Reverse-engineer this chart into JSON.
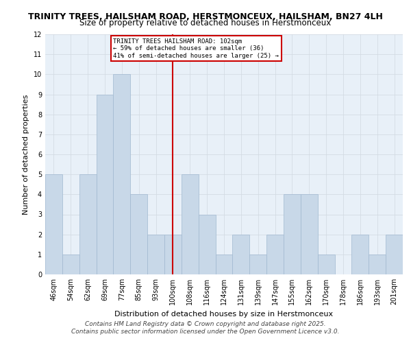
{
  "title_line1": "TRINITY TREES, HAILSHAM ROAD, HERSTMONCEUX, HAILSHAM, BN27 4LH",
  "title_line2": "Size of property relative to detached houses in Herstmonceux",
  "categories": [
    "46sqm",
    "54sqm",
    "62sqm",
    "69sqm",
    "77sqm",
    "85sqm",
    "93sqm",
    "100sqm",
    "108sqm",
    "116sqm",
    "124sqm",
    "131sqm",
    "139sqm",
    "147sqm",
    "155sqm",
    "162sqm",
    "170sqm",
    "178sqm",
    "186sqm",
    "193sqm",
    "201sqm"
  ],
  "values": [
    5,
    1,
    5,
    9,
    10,
    4,
    2,
    2,
    5,
    3,
    1,
    2,
    1,
    2,
    4,
    4,
    1,
    0,
    2,
    1,
    2
  ],
  "bar_color": "#c8d8e8",
  "bar_edge_color": "#a0b8d0",
  "highlight_index": 7,
  "highlight_line_color": "#cc0000",
  "annotation_line1": "TRINITY TREES HAILSHAM ROAD: 102sqm",
  "annotation_line2": "← 59% of detached houses are smaller (36)",
  "annotation_line3": "41% of semi-detached houses are larger (25) →",
  "annotation_box_color": "#ffffff",
  "annotation_box_edge": "#cc0000",
  "ylabel": "Number of detached properties",
  "xlabel": "Distribution of detached houses by size in Herstmonceux",
  "ylim": [
    0,
    12
  ],
  "yticks": [
    0,
    1,
    2,
    3,
    4,
    5,
    6,
    7,
    8,
    9,
    10,
    11,
    12
  ],
  "grid_color": "#d0d8e0",
  "background_color": "#e8f0f8",
  "footer_line1": "Contains HM Land Registry data © Crown copyright and database right 2025.",
  "footer_line2": "Contains public sector information licensed under the Open Government Licence v3.0.",
  "title_fontsize": 9,
  "subtitle_fontsize": 8.5,
  "tick_fontsize": 7,
  "ylabel_fontsize": 8,
  "xlabel_fontsize": 8,
  "footer_fontsize": 6.5
}
